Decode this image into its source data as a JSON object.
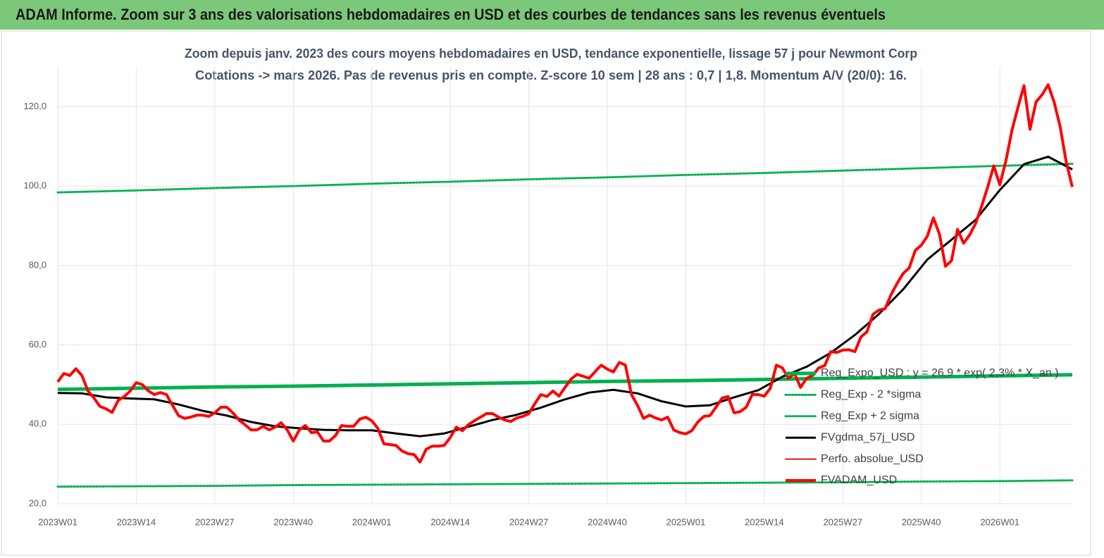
{
  "banner": "ADAM Informe. Zoom sur 3 ans des valorisations hebdomadaires en USD et des courbes de tendances sans les revenus éventuels",
  "chart_data": {
    "type": "line",
    "title": "Zoom depuis janv. 2023 des cours moyens hebdomadaires en USD, tendance exponentielle, lissage 57 j pour Newmont Corp",
    "subtitle": "Cotations -> mars 2026. Pas de revenus pris en compte. Z-score 10 sem  | 28 ans : 0,7 | 1,8. Momentum A/V (20/0): 16.",
    "xlim": [
      0,
      168
    ],
    "xticks": [
      {
        "value": 0,
        "label": "2023W01"
      },
      {
        "value": 13,
        "label": "2023W14"
      },
      {
        "value": 26,
        "label": "2023W27"
      },
      {
        "value": 39,
        "label": "2023W40"
      },
      {
        "value": 52,
        "label": "2024W01"
      },
      {
        "value": 65,
        "label": "2024W14"
      },
      {
        "value": 78,
        "label": "2024W27"
      },
      {
        "value": 91,
        "label": "2024W40"
      },
      {
        "value": 104,
        "label": "2025W01"
      },
      {
        "value": 117,
        "label": "2025W14"
      },
      {
        "value": 130,
        "label": "2025W27"
      },
      {
        "value": 143,
        "label": "2025W40"
      },
      {
        "value": 156,
        "label": "2026W01"
      }
    ],
    "ylim": [
      20,
      130
    ],
    "yticks": [
      {
        "value": 20,
        "label": "20,0"
      },
      {
        "value": 40,
        "label": "40,0"
      },
      {
        "value": 60,
        "label": "60,0"
      },
      {
        "value": 80,
        "label": "80,0"
      },
      {
        "value": 100,
        "label": "100,0"
      },
      {
        "value": 120,
        "label": "120,0"
      }
    ],
    "grid": true,
    "series": [
      {
        "name": "Reg_Expo_USD : y = 26,9 * exp( 2,3% * X_an )",
        "color": "#00b050",
        "style": "solid",
        "width": 5,
        "x": [
          0,
          13,
          26,
          39,
          52,
          65,
          78,
          91,
          104,
          117,
          130,
          143,
          156,
          168
        ],
        "values": [
          48.8,
          49.1,
          49.4,
          49.6,
          49.9,
          50.2,
          50.5,
          50.8,
          51.0,
          51.3,
          51.6,
          51.9,
          52.2,
          52.5
        ]
      },
      {
        "name": "Reg_Exp - 2 *sigma",
        "color": "#00b050",
        "style": "dotted",
        "width": 3,
        "x": [
          0,
          13,
          26,
          39,
          52,
          65,
          78,
          91,
          104,
          117,
          130,
          143,
          156,
          168
        ],
        "values": [
          24.3,
          24.4,
          24.5,
          24.7,
          24.8,
          24.9,
          25.0,
          25.1,
          25.2,
          25.3,
          25.4,
          25.6,
          25.7,
          25.9
        ]
      },
      {
        "name": "Reg_Exp + 2 sigma",
        "color": "#00b050",
        "style": "dotted",
        "width": 3,
        "x": [
          0,
          13,
          26,
          39,
          52,
          65,
          78,
          91,
          104,
          117,
          130,
          143,
          156,
          168
        ],
        "values": [
          98.4,
          98.9,
          99.5,
          100.0,
          100.6,
          101.1,
          101.7,
          102.2,
          102.8,
          103.3,
          103.9,
          104.5,
          105.1,
          105.6
        ]
      },
      {
        "name": "FVgdma_57j_USD",
        "color": "#000000",
        "style": "solid",
        "width": 3,
        "x": [
          0,
          4,
          8,
          12,
          16,
          20,
          24,
          28,
          32,
          36,
          40,
          44,
          48,
          52,
          56,
          60,
          64,
          68,
          72,
          76,
          80,
          84,
          88,
          92,
          96,
          100,
          104,
          108,
          112,
          116,
          120,
          124,
          128,
          132,
          136,
          140,
          144,
          148,
          152,
          156,
          160,
          164,
          168
        ],
        "values": [
          47.9,
          47.8,
          46.8,
          46.5,
          46.3,
          45.0,
          43.4,
          42.2,
          40.6,
          39.5,
          39.0,
          38.6,
          38.5,
          38.5,
          37.7,
          37.0,
          37.7,
          39.4,
          41.1,
          42.4,
          44.2,
          46.3,
          48.0,
          48.7,
          47.8,
          45.8,
          44.5,
          44.8,
          46.8,
          48.6,
          52.0,
          54.5,
          58.0,
          62.5,
          67.8,
          74.0,
          81.5,
          86.5,
          91.5,
          99.0,
          105.5,
          107.4,
          104.2
        ]
      },
      {
        "name": "Perfo. absolue_USD",
        "color": "#e00000",
        "style": "dotted",
        "width": 2,
        "x": [],
        "values": []
      },
      {
        "name": "FVADAM_USD",
        "color": "#ff0000",
        "style": "solid",
        "width": 4,
        "x": [
          0,
          1,
          2,
          3,
          4,
          5,
          6,
          7,
          8,
          9,
          10,
          11,
          12,
          13,
          14,
          15,
          16,
          17,
          18,
          19,
          20,
          21,
          22,
          23,
          24,
          25,
          26,
          27,
          28,
          29,
          30,
          31,
          32,
          33,
          34,
          35,
          36,
          37,
          38,
          39,
          40,
          41,
          42,
          43,
          44,
          45,
          46,
          47,
          48,
          49,
          50,
          51,
          52,
          53,
          54,
          55,
          56,
          57,
          58,
          59,
          60,
          61,
          62,
          63,
          64,
          65,
          66,
          67,
          68,
          69,
          70,
          71,
          72,
          73,
          74,
          75,
          76,
          77,
          78,
          79,
          80,
          81,
          82,
          83,
          84,
          85,
          86,
          87,
          88,
          89,
          90,
          91,
          92,
          93,
          94,
          95,
          96,
          97,
          98,
          99,
          100,
          101,
          102,
          103,
          104,
          105,
          106,
          107,
          108,
          109,
          110,
          111,
          112,
          113,
          114,
          115,
          116,
          117,
          118,
          119,
          120,
          121,
          122,
          123,
          124,
          125,
          126,
          127,
          128,
          129,
          130,
          131,
          132,
          133,
          134,
          135,
          136,
          137,
          138,
          139,
          140,
          141,
          142,
          143,
          144,
          145,
          146,
          147,
          148,
          149,
          150,
          151,
          152,
          153,
          154,
          155,
          156,
          157,
          158,
          159,
          160,
          161,
          162,
          163,
          164,
          165,
          166,
          167,
          168
        ],
        "values": [
          50.7,
          52.8,
          52.3,
          54,
          52.3,
          48.4,
          46.6,
          44.5,
          43.9,
          43,
          46,
          47,
          48.4,
          50.5,
          50,
          48.4,
          47.5,
          48,
          47.5,
          44.8,
          42.2,
          41.5,
          41.8,
          42.3,
          42.3,
          42,
          42.9,
          44.3,
          44.3,
          42.9,
          41.1,
          39.9,
          38.6,
          38.6,
          39.5,
          38.6,
          39.3,
          40.4,
          38.6,
          35.8,
          38.6,
          39.7,
          37.9,
          38.1,
          35.8,
          35.8,
          37.2,
          39.7,
          39.5,
          39.5,
          41.3,
          41.8,
          40.9,
          39,
          35.1,
          34.9,
          34.7,
          33.3,
          32.6,
          32.4,
          30.5,
          33.7,
          34.5,
          34.5,
          34.7,
          36.7,
          39.3,
          38.4,
          39.9,
          40.9,
          41.8,
          42.7,
          42.7,
          41.8,
          41.1,
          40.7,
          41.6,
          42,
          42.7,
          45.2,
          47.5,
          47,
          48.4,
          47.1,
          49.3,
          51.4,
          52.6,
          52.1,
          51.6,
          53.3,
          54.9,
          53.9,
          53.2,
          55.6,
          54.9,
          47.5,
          44.8,
          41.5,
          42.3,
          41.6,
          41.1,
          41.8,
          38.6,
          37.9,
          37.6,
          38.4,
          40.6,
          42,
          42.2,
          44.3,
          46.6,
          47,
          42.9,
          43.2,
          44.3,
          47.5,
          47.5,
          47.1,
          49.1,
          54.9,
          54.2,
          51.6,
          52.8,
          49.3,
          51.6,
          52.3,
          54.2,
          54.8,
          58.3,
          58.1,
          58.7,
          58.8,
          58.3,
          62,
          63.3,
          67.7,
          68.8,
          69.1,
          72.7,
          75.5,
          78,
          79.4,
          83.8,
          85.1,
          87.4,
          92,
          87.9,
          79.8,
          81.2,
          89.1,
          85.6,
          87.7,
          90.6,
          95,
          99.8,
          105.1,
          100.3,
          106.3,
          114,
          119.8,
          125.3,
          114.3,
          121.2,
          123,
          125.5,
          121.1,
          114.9,
          106,
          99.8
        ]
      }
    ]
  }
}
